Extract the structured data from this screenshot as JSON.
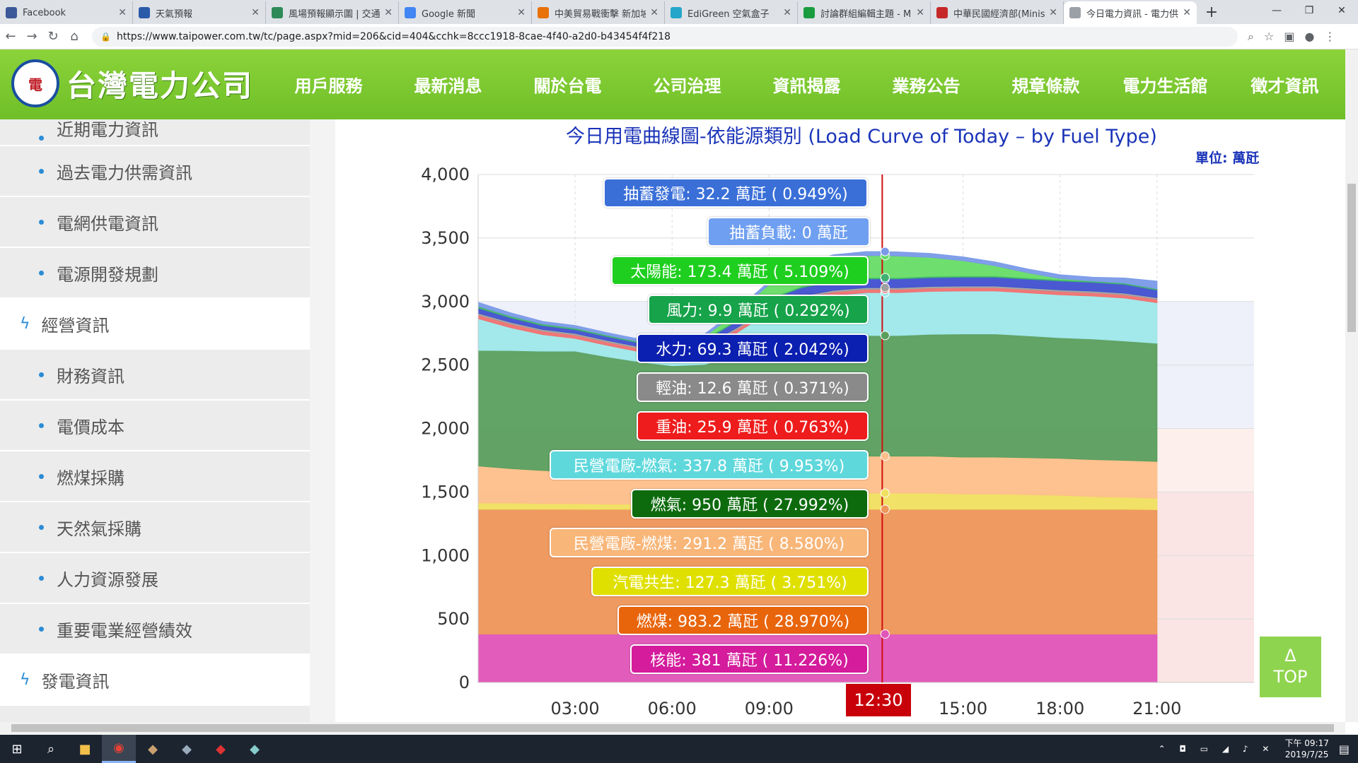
{
  "browser": {
    "tabs": [
      {
        "title": "Facebook",
        "color": "#3b5998"
      },
      {
        "title": "天氣預報",
        "color": "#2a5ba8"
      },
      {
        "title": "風場預報顯示圖 | 交通部",
        "color": "#2e8b57"
      },
      {
        "title": "Google 新聞",
        "color": "#4285f4"
      },
      {
        "title": "中美貿易戰衝擊 新加坡",
        "color": "#e8710a"
      },
      {
        "title": "EdiGreen 空氣盒子",
        "color": "#23a6c9"
      },
      {
        "title": "討論群組編輯主題 - M",
        "color": "#1a9c3e"
      },
      {
        "title": "中華民國經濟部(Minis",
        "color": "#c62828"
      },
      {
        "title": "今日電力資訊 - 電力供",
        "color": "#9aa0a6"
      }
    ],
    "url": "https://www.taipower.com.tw/tc/page.aspx?mid=206&cid=404&cchk=8ccc1918-8cae-4f40-a2d0-b43454f4f218"
  },
  "site": {
    "logo_text": "台灣電力公司",
    "nav": [
      "用戶服務",
      "最新消息",
      "關於台電",
      "公司治理",
      "資訊揭露",
      "業務公告",
      "規章條款",
      "電力生活館",
      "徵才資訊"
    ]
  },
  "sidebar": {
    "items": [
      {
        "label": "近期電力資訊",
        "type": "sub"
      },
      {
        "label": "過去電力供需資訊",
        "type": "sub"
      },
      {
        "label": "電網供電資訊",
        "type": "sub"
      },
      {
        "label": "電源開發規劃",
        "type": "sub"
      },
      {
        "label": "經營資訊",
        "type": "sec"
      },
      {
        "label": "財務資訊",
        "type": "sub"
      },
      {
        "label": "電價成本",
        "type": "sub"
      },
      {
        "label": "燃煤採購",
        "type": "sub"
      },
      {
        "label": "天然氣採購",
        "type": "sub"
      },
      {
        "label": "人力資源發展",
        "type": "sub"
      },
      {
        "label": "重要電業經營績效",
        "type": "sub"
      },
      {
        "label": "發電資訊",
        "type": "sec"
      }
    ]
  },
  "chart_title": "今日用電曲線圖-依能源類別 (Load Curve of Today – by Fuel Type)",
  "unit_label": "單位: 萬瓩",
  "current_time": "12:30",
  "top_button": {
    "arrow": "Δ",
    "label": "TOP"
  },
  "tooltips": [
    {
      "text": "抽蓄發電: 32.2 萬瓩 ( 0.949%)",
      "color": "#3a6fd8"
    },
    {
      "text": "抽蓄負載: 0 萬瓩",
      "color": "#6f9ff0"
    },
    {
      "text": "太陽能: 173.4 萬瓩 ( 5.109%)",
      "color": "#1fcf1f"
    },
    {
      "text": "風力: 9.9 萬瓩 ( 0.292%)",
      "color": "#16a34a"
    },
    {
      "text": "水力: 69.3 萬瓩 ( 2.042%)",
      "color": "#0b1fb0"
    },
    {
      "text": "輕油: 12.6 萬瓩 ( 0.371%)",
      "color": "#8a8a8a"
    },
    {
      "text": "重油: 25.9 萬瓩 ( 0.763%)",
      "color": "#ee1c1c"
    },
    {
      "text": "民營電廠-燃氣: 337.8 萬瓩 ( 9.953%)",
      "color": "#5fd8dc"
    },
    {
      "text": "燃氣: 950 萬瓩 ( 27.992%)",
      "color": "#0d6b0d"
    },
    {
      "text": "民營電廠-燃煤: 291.2 萬瓩 ( 8.580%)",
      "color": "#f8b679"
    },
    {
      "text": "汽電共生: 127.3 萬瓩 ( 3.751%)",
      "color": "#e0e000"
    },
    {
      "text": "燃煤: 983.2 萬瓩 ( 28.970%)",
      "color": "#e8650c"
    },
    {
      "text": "核能: 381 萬瓩 ( 11.226%)",
      "color": "#d41c9c"
    }
  ],
  "chart_data": {
    "type": "area",
    "stacked": true,
    "x": [
      "00:00",
      "01:00",
      "02:00",
      "03:00",
      "04:00",
      "05:00",
      "06:00",
      "07:00",
      "08:00",
      "09:00",
      "10:00",
      "11:00",
      "12:00",
      "12:30",
      "13:00",
      "14:00",
      "15:00",
      "16:00",
      "17:00",
      "18:00",
      "19:00",
      "20:00",
      "21:00"
    ],
    "xticks": [
      "03:00",
      "06:00",
      "09:00",
      "15:00",
      "18:00",
      "21:00"
    ],
    "ylim": [
      0,
      4000
    ],
    "yticks": [
      "0",
      "500",
      "1,000",
      "1,500",
      "2,000",
      "2,500",
      "3,000",
      "3,500",
      "4,000"
    ],
    "series": [
      {
        "name": "核能",
        "color": "#e055b8",
        "values": [
          381,
          381,
          381,
          381,
          381,
          381,
          381,
          381,
          381,
          381,
          381,
          381,
          381,
          381,
          381,
          381,
          381,
          381,
          381,
          381,
          381,
          381,
          381
        ]
      },
      {
        "name": "燃煤",
        "color": "#ee965a",
        "values": [
          983,
          983,
          983,
          983,
          983,
          983,
          983,
          983,
          983,
          983,
          983,
          983,
          983,
          983,
          983,
          983,
          983,
          983,
          983,
          983,
          983,
          983,
          980
        ]
      },
      {
        "name": "汽電共生",
        "color": "#f0e060",
        "values": [
          50,
          50,
          45,
          45,
          40,
          40,
          40,
          40,
          60,
          90,
          110,
          120,
          127,
          127,
          127,
          127,
          120,
          120,
          115,
          110,
          100,
          95,
          90
        ]
      },
      {
        "name": "民營電廠-燃煤",
        "color": "#fdbf8a",
        "values": [
          291,
          270,
          260,
          250,
          240,
          240,
          240,
          240,
          250,
          270,
          280,
          285,
          291,
          291,
          291,
          291,
          291,
          291,
          291,
          291,
          291,
          290,
          290
        ]
      },
      {
        "name": "燃氣",
        "color": "#5a9e5e",
        "values": [
          910,
          930,
          940,
          950,
          920,
          880,
          850,
          860,
          900,
          940,
          950,
          950,
          950,
          950,
          950,
          960,
          970,
          970,
          960,
          950,
          950,
          940,
          930
        ]
      },
      {
        "name": "民營電廠-燃氣",
        "color": "#9ee8ea",
        "values": [
          250,
          180,
          130,
          100,
          90,
          80,
          80,
          110,
          180,
          250,
          300,
          330,
          338,
          338,
          338,
          338,
          338,
          338,
          338,
          338,
          338,
          338,
          320
        ]
      },
      {
        "name": "重油",
        "color": "#f07070",
        "values": [
          30,
          30,
          28,
          27,
          26,
          26,
          26,
          26,
          26,
          26,
          26,
          26,
          26,
          26,
          26,
          26,
          26,
          26,
          26,
          26,
          26,
          26,
          26
        ]
      },
      {
        "name": "輕油",
        "color": "#a0a0a0",
        "values": [
          13,
          13,
          13,
          13,
          13,
          13,
          13,
          13,
          13,
          13,
          13,
          13,
          13,
          13,
          13,
          13,
          13,
          13,
          13,
          13,
          13,
          13,
          13
        ]
      },
      {
        "name": "水力",
        "color": "#4050d0",
        "values": [
          40,
          35,
          30,
          30,
          30,
          30,
          30,
          40,
          50,
          60,
          65,
          68,
          69,
          69,
          69,
          69,
          69,
          69,
          69,
          69,
          69,
          69,
          60
        ]
      },
      {
        "name": "風力",
        "color": "#40b070",
        "values": [
          15,
          14,
          13,
          12,
          11,
          10,
          10,
          10,
          10,
          10,
          10,
          10,
          10,
          10,
          10,
          10,
          10,
          10,
          10,
          10,
          10,
          10,
          10
        ]
      },
      {
        "name": "太陽能",
        "color": "#66dd66",
        "values": [
          0,
          0,
          0,
          0,
          0,
          0,
          0,
          20,
          60,
          110,
          150,
          170,
          173,
          173,
          170,
          150,
          120,
          80,
          40,
          10,
          0,
          0,
          0
        ]
      },
      {
        "name": "抽蓄發電",
        "color": "#7a9ae8",
        "values": [
          30,
          25,
          20,
          20,
          20,
          20,
          20,
          20,
          20,
          25,
          30,
          32,
          32,
          32,
          32,
          30,
          30,
          30,
          30,
          30,
          30,
          40,
          60
        ]
      }
    ]
  }
}
